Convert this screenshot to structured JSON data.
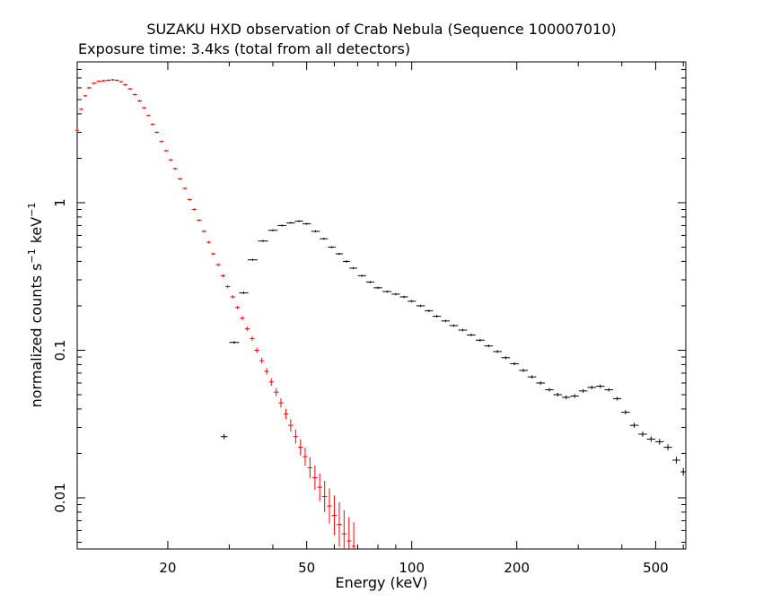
{
  "chart_data": {
    "type": "scatter",
    "title": "SUZAKU HXD observation of Crab Nebula (Sequence 100007010)",
    "subtitle": "Exposure time: 3.4ks (total from all detectors)",
    "xlabel": "Energy (keV)",
    "ylabel": "normalized counts s",
    "ylabel_sup1": "−1",
    "ylabel_unit": "keV",
    "ylabel_sup2": "−1",
    "xscale": "log",
    "yscale": "log",
    "xlim": [
      11,
      610
    ],
    "ylim": [
      0.0045,
      9
    ],
    "xticks": [
      20,
      50,
      100,
      200,
      500
    ],
    "yticks": [
      0.01,
      0.1,
      1
    ],
    "xtick_labels": [
      "20",
      "50",
      "100",
      "200",
      "500"
    ],
    "ytick_labels": [
      "0.01",
      "0.1",
      "1"
    ],
    "colors": {
      "series_pin": "#ff0000",
      "series_gso": "#000000",
      "axes": "#000000"
    },
    "series": [
      {
        "color": "#ff0000",
        "points": [
          [
            11.0,
            3.1
          ],
          [
            11.3,
            4.3
          ],
          [
            11.6,
            5.3
          ],
          [
            11.9,
            6.0
          ],
          [
            12.3,
            6.45
          ],
          [
            12.7,
            6.65
          ],
          [
            13.1,
            6.7
          ],
          [
            13.5,
            6.75
          ],
          [
            13.9,
            6.8
          ],
          [
            14.3,
            6.75
          ],
          [
            14.7,
            6.6
          ],
          [
            15.1,
            6.3
          ],
          [
            15.6,
            5.9
          ],
          [
            16.1,
            5.4
          ],
          [
            16.6,
            4.9
          ],
          [
            17.1,
            4.4
          ],
          [
            17.6,
            3.9
          ],
          [
            18.1,
            3.4
          ],
          [
            18.6,
            3.0
          ],
          [
            19.2,
            2.6
          ],
          [
            19.8,
            2.25
          ],
          [
            20.4,
            1.95
          ],
          [
            21.0,
            1.7
          ],
          [
            21.7,
            1.45
          ],
          [
            22.4,
            1.25
          ],
          [
            23.1,
            1.05
          ],
          [
            23.8,
            0.9
          ],
          [
            24.6,
            0.76
          ],
          [
            25.4,
            0.64
          ],
          [
            26.2,
            0.54
          ],
          [
            27.0,
            0.45
          ],
          [
            27.9,
            0.38
          ],
          [
            28.8,
            0.32
          ],
          [
            29.7,
            0.27
          ],
          [
            30.7,
            0.23
          ],
          [
            31.7,
            0.195
          ],
          [
            32.7,
            0.165
          ],
          [
            33.8,
            0.14
          ],
          [
            34.9,
            0.12
          ],
          [
            36.0,
            0.1
          ],
          [
            37.2,
            0.085
          ],
          [
            38.4,
            0.072
          ],
          [
            39.6,
            0.061
          ],
          [
            40.9,
            0.052
          ],
          [
            42.2,
            0.044
          ],
          [
            43.6,
            0.037
          ],
          [
            45.0,
            0.031
          ],
          [
            46.5,
            0.026
          ],
          [
            48.0,
            0.022
          ],
          [
            49.5,
            0.019
          ],
          [
            51.1,
            0.016
          ],
          [
            52.8,
            0.0137
          ],
          [
            54.5,
            0.0118
          ],
          [
            56.3,
            0.0102
          ],
          [
            58.1,
            0.0088
          ],
          [
            60.0,
            0.0076
          ],
          [
            62.0,
            0.0066
          ],
          [
            64.0,
            0.0057
          ],
          [
            66.1,
            0.0051
          ],
          [
            68.2,
            0.0047
          ]
        ]
      },
      {
        "color": "#000000",
        "points": [
          [
            29.0,
            0.026
          ],
          [
            31.0,
            0.113
          ],
          [
            33.0,
            0.245
          ],
          [
            35.0,
            0.41
          ],
          [
            37.5,
            0.55
          ],
          [
            40.0,
            0.65
          ],
          [
            42.5,
            0.7
          ],
          [
            45.0,
            0.73
          ],
          [
            47.5,
            0.75
          ],
          [
            50.0,
            0.72
          ],
          [
            53.0,
            0.64
          ],
          [
            56.0,
            0.57
          ],
          [
            59.0,
            0.5
          ],
          [
            62.0,
            0.45
          ],
          [
            65.0,
            0.4
          ],
          [
            68.0,
            0.36
          ],
          [
            72.0,
            0.32
          ],
          [
            76.0,
            0.29
          ],
          [
            80.0,
            0.265
          ],
          [
            85.0,
            0.25
          ],
          [
            90.0,
            0.24
          ],
          [
            95.0,
            0.23
          ],
          [
            100.0,
            0.215
          ],
          [
            106.0,
            0.2
          ],
          [
            112.0,
            0.185
          ],
          [
            118.0,
            0.17
          ],
          [
            125.0,
            0.158
          ],
          [
            132.0,
            0.147
          ],
          [
            140.0,
            0.137
          ],
          [
            148.0,
            0.127
          ],
          [
            157.0,
            0.117
          ],
          [
            166.0,
            0.107
          ],
          [
            176.0,
            0.098
          ],
          [
            186.0,
            0.089
          ],
          [
            197.0,
            0.081
          ],
          [
            209.0,
            0.073
          ],
          [
            221.0,
            0.066
          ],
          [
            234.0,
            0.06
          ],
          [
            248.0,
            0.054
          ],
          [
            262.0,
            0.05
          ],
          [
            277.0,
            0.048
          ],
          [
            293.0,
            0.049
          ],
          [
            310.0,
            0.053
          ],
          [
            328.0,
            0.056
          ],
          [
            347.0,
            0.057
          ],
          [
            367.0,
            0.054
          ],
          [
            388.0,
            0.047
          ],
          [
            410.0,
            0.038
          ],
          [
            434.0,
            0.031
          ],
          [
            459.0,
            0.027
          ],
          [
            485.0,
            0.025
          ],
          [
            513.0,
            0.024
          ],
          [
            542.0,
            0.022
          ],
          [
            573.0,
            0.018
          ],
          [
            600.0,
            0.015
          ]
        ]
      }
    ]
  }
}
